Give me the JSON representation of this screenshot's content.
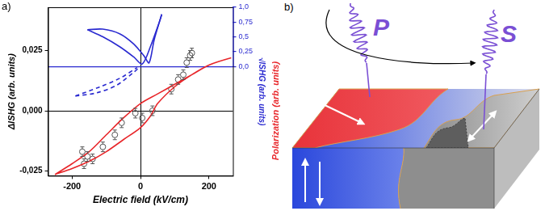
{
  "chart_data": {
    "type": "scatter",
    "panel_label": "a)",
    "x_label": "Electric field (kV/cm)",
    "y_label": "ΔISHG (arb. units)",
    "y2_label": "√ISHG (arb. units)",
    "polarization_label": "Polarization (arb. units)",
    "xlim": [
      -270,
      270
    ],
    "xticks": [
      -200,
      0,
      200
    ],
    "ylim": [
      -0.027,
      0.043
    ],
    "yticks": [
      {
        "value": -0.025,
        "label": "-0,025"
      },
      {
        "value": 0,
        "label": "0,000"
      },
      {
        "value": 0.025,
        "label": "0,025"
      }
    ],
    "y2lim": [
      -1.85,
      1.0
    ],
    "y2ticks": [
      {
        "value": 0,
        "label": "0,0"
      },
      {
        "value": 0.25,
        "label": "0,25"
      },
      {
        "value": 0.5,
        "label": "0,5"
      },
      {
        "value": 0.75,
        "label": "0,75"
      },
      {
        "value": 1,
        "label": "1,0"
      }
    ],
    "grid": false,
    "series": [
      {
        "type": "line",
        "color": "#e8262a",
        "line_style": "solid",
        "marker": "none",
        "x": [
          -250,
          -200,
          -150,
          -100,
          -50,
          0,
          30,
          50,
          100,
          150,
          200,
          265,
          200,
          150,
          100,
          50,
          0,
          -50,
          -100,
          -150,
          -200,
          -250
        ],
        "values": [
          -0.0265,
          -0.024,
          -0.021,
          -0.017,
          -0.012,
          -0.007,
          -0.002,
          0.003,
          0.01,
          0.015,
          0.019,
          0.022,
          0.019,
          0.015,
          0.011,
          0.007,
          0.003,
          -0.003,
          -0.01,
          -0.017,
          -0.022,
          -0.0265
        ]
      },
      {
        "type": "scatter",
        "color": "#555555",
        "marker": "open_circle",
        "x": [
          -170,
          -165,
          -155,
          -140,
          -110,
          -75,
          -55,
          -15,
          5,
          35,
          90,
          110,
          125,
          135,
          145,
          150
        ],
        "values": [
          -0.017,
          -0.022,
          -0.019,
          -0.02,
          -0.015,
          -0.01,
          -0.005,
          -0.001,
          -0.003,
          0.0,
          0.009,
          0.013,
          0.015,
          0.02,
          0.023,
          0.024
        ],
        "errors": [
          0.002,
          0.002,
          0.002,
          0.002,
          0.002,
          0.002,
          0.002,
          0.002,
          0.002,
          0.002,
          0.002,
          0.002,
          0.002,
          0.002,
          0.002,
          0.002
        ]
      },
      {
        "type": "line",
        "color": "#2a2ad0",
        "line_style": "solid",
        "marker": "none",
        "axis": "y2",
        "x": [
          -155,
          -110,
          -60,
          -20,
          5,
          30,
          55,
          62
        ],
        "values": [
          0.62,
          0.5,
          0.33,
          0.16,
          0.04,
          0.35,
          0.75,
          0.88
        ]
      },
      {
        "type": "line",
        "color": "#2a2ad0",
        "line_style": "solid",
        "marker": "none",
        "axis": "y2",
        "x": [
          -155,
          -110,
          -60,
          -20,
          10,
          25,
          40,
          62
        ],
        "values": [
          0.62,
          0.63,
          0.55,
          0.38,
          0.18,
          0.06,
          0.45,
          0.88
        ]
      },
      {
        "type": "line",
        "color": "#2a2ad0",
        "line_style": "dashed",
        "marker": "none",
        "axis": "y2",
        "x": [
          -190,
          -120,
          -60,
          -10
        ],
        "values": [
          -0.5,
          -0.35,
          -0.2,
          -0.02
        ]
      },
      {
        "type": "line",
        "color": "#2a2ad0",
        "line_style": "dashed",
        "marker": "none",
        "axis": "y2",
        "x": [
          -190,
          -130,
          -70,
          -20,
          0
        ],
        "values": [
          -0.5,
          -0.45,
          -0.32,
          -0.1,
          0.0
        ]
      }
    ]
  },
  "diagram": {
    "panel_label": "b)",
    "beams": [
      {
        "label": "P"
      },
      {
        "label": "S"
      }
    ]
  }
}
